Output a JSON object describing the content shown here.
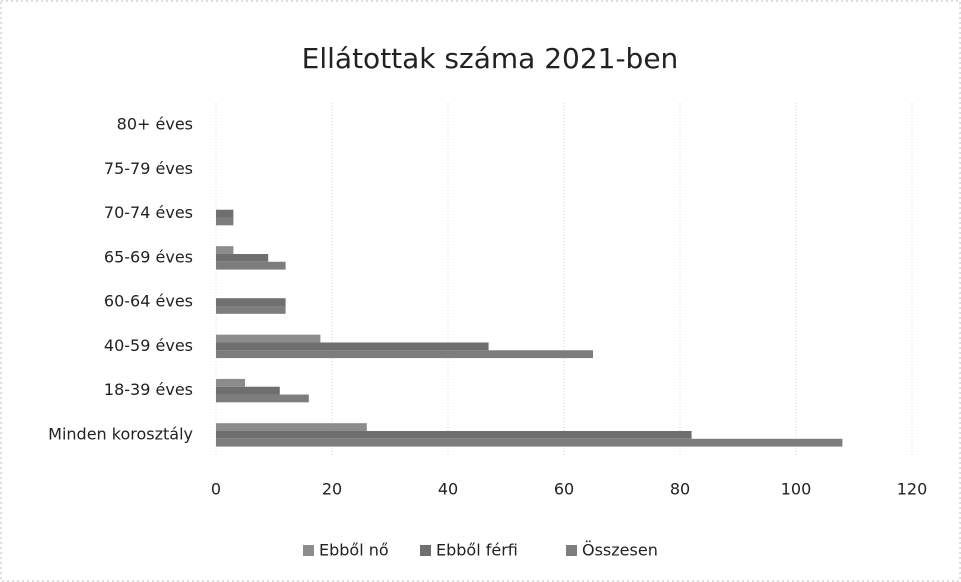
{
  "chart_data": {
    "type": "bar",
    "orientation": "horizontal",
    "title": "Ellátottak száma 2021-ben",
    "categories": [
      "Minden korosztály",
      "18-39 éves",
      "40-59 éves",
      "60-64 éves",
      "65-69 éves",
      "70-74 éves",
      "75-79 éves",
      "80+ éves"
    ],
    "series": [
      {
        "name": "Ebből nő",
        "color": "#8c8c8c",
        "values": [
          26,
          5,
          18,
          0,
          3,
          0,
          0,
          0
        ]
      },
      {
        "name": "Ebből férfi",
        "color": "#6f6f6f",
        "values": [
          82,
          11,
          47,
          12,
          9,
          3,
          0,
          0
        ]
      },
      {
        "name": "Összesen",
        "color": "#7d7d7d",
        "values": [
          108,
          16,
          65,
          12,
          12,
          3,
          0,
          0
        ]
      }
    ],
    "xlim": [
      0,
      120
    ],
    "xticks": [
      0,
      20,
      40,
      60,
      80,
      100,
      120
    ],
    "grid": true,
    "legend": "bottom"
  }
}
